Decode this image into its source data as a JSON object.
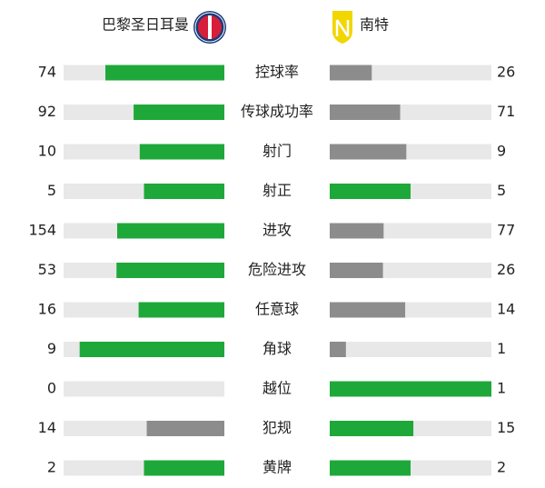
{
  "header": {
    "home": "巴黎圣日耳曼",
    "away": "南特"
  },
  "stats": [
    {
      "label": "控球率",
      "home": 74,
      "away": 26
    },
    {
      "label": "传球成功率",
      "home": 92,
      "away": 71
    },
    {
      "label": "射门",
      "home": 10,
      "away": 9
    },
    {
      "label": "射正",
      "home": 5,
      "away": 5
    },
    {
      "label": "进攻",
      "home": 154,
      "away": 77
    },
    {
      "label": "危险进攻",
      "home": 53,
      "away": 26
    },
    {
      "label": "任意球",
      "home": 16,
      "away": 14
    },
    {
      "label": "角球",
      "home": 9,
      "away": 1
    },
    {
      "label": "越位",
      "home": 0,
      "away": 1
    },
    {
      "label": "犯规",
      "home": 14,
      "away": 15
    },
    {
      "label": "黄牌",
      "home": 2,
      "away": 2
    }
  ]
}
